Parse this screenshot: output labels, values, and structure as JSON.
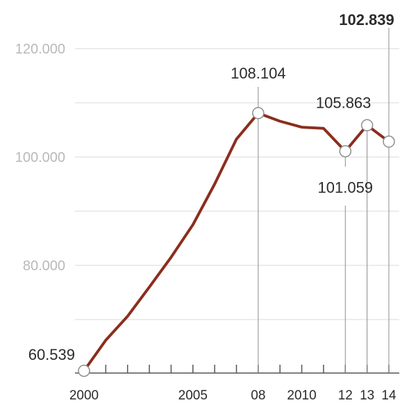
{
  "chart_data": {
    "type": "line",
    "title": "",
    "xlabel": "",
    "ylabel": "",
    "x": [
      2000,
      2001,
      2002,
      2003,
      2004,
      2005,
      2006,
      2007,
      2008,
      2009,
      2010,
      2011,
      2012,
      2013,
      2014
    ],
    "series": [
      {
        "values": [
          60539,
          66200,
          70600,
          76000,
          81500,
          87500,
          95000,
          103300,
          108104,
          106600,
          105500,
          105300,
          101059,
          105863,
          102839
        ]
      }
    ],
    "ylim": [
      58000,
      124000
    ],
    "y_ticks": [
      {
        "value": 80000,
        "label": "80.000"
      },
      {
        "value": 100000,
        "label": "100.000"
      },
      {
        "value": 120000,
        "label": "120.000"
      }
    ],
    "x_tick_labels": [
      {
        "x": 2000,
        "label": "2000"
      },
      {
        "x": 2005,
        "label": "2005"
      },
      {
        "x": 2008,
        "label": "08"
      },
      {
        "x": 2010,
        "label": "2010"
      },
      {
        "x": 2012,
        "label": "12"
      },
      {
        "x": 2013,
        "label": "13"
      },
      {
        "x": 2014,
        "label": "14"
      }
    ],
    "annotations": [
      {
        "x": 2000,
        "value": 60539,
        "label": "60.539",
        "bold": false
      },
      {
        "x": 2008,
        "value": 108104,
        "label": "108.104",
        "bold": false
      },
      {
        "x": 2012,
        "value": 101059,
        "label": "101.059",
        "bold": false
      },
      {
        "x": 2013,
        "value": 105863,
        "label": "105.863",
        "bold": false
      },
      {
        "x": 2014,
        "value": 102839,
        "label": "102.839",
        "bold": true
      }
    ],
    "grid": true,
    "line_color": "#8b2e1e",
    "grid_color": "#d9d9d9"
  }
}
